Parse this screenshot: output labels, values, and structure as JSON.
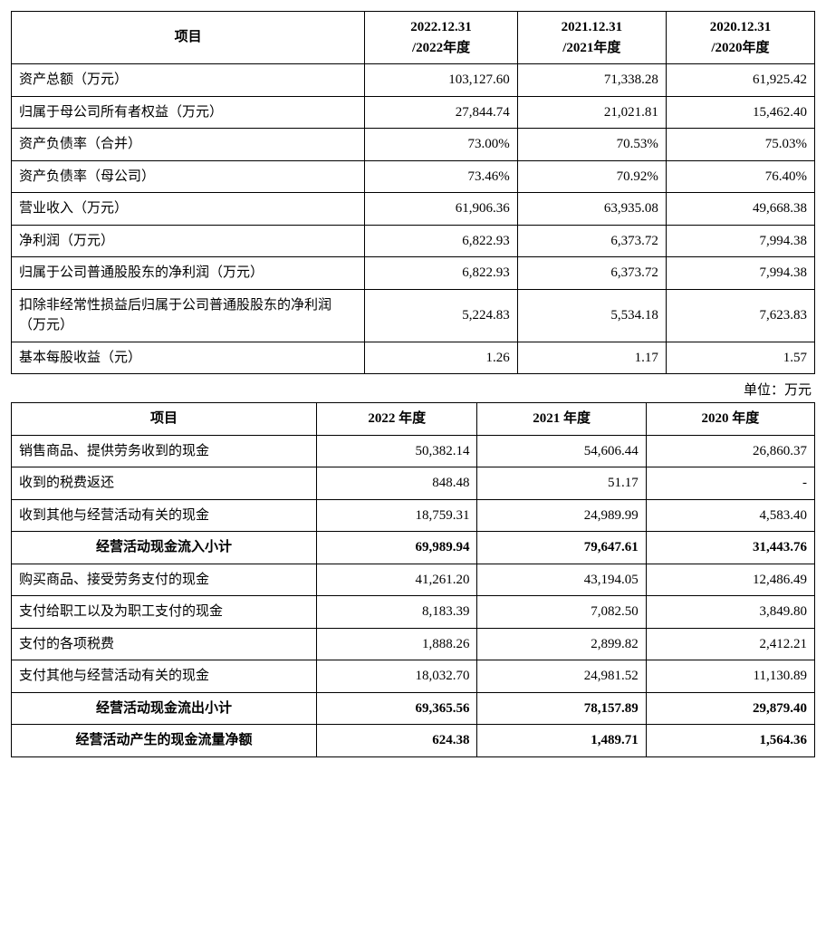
{
  "table1": {
    "header": {
      "item": "项目",
      "y2022": "2022.12.31\n/2022年度",
      "y2021": "2021.12.31\n/2021年度",
      "y2020": "2020.12.31\n/2020年度"
    },
    "rows": [
      {
        "label": "资产总额（万元）",
        "v": [
          "103,127.60",
          "71,338.28",
          "61,925.42"
        ]
      },
      {
        "label": "归属于母公司所有者权益（万元）",
        "v": [
          "27,844.74",
          "21,021.81",
          "15,462.40"
        ]
      },
      {
        "label": "资产负债率（合并）",
        "v": [
          "73.00%",
          "70.53%",
          "75.03%"
        ]
      },
      {
        "label": "资产负债率（母公司）",
        "v": [
          "73.46%",
          "70.92%",
          "76.40%"
        ]
      },
      {
        "label": "营业收入（万元）",
        "v": [
          "61,906.36",
          "63,935.08",
          "49,668.38"
        ]
      },
      {
        "label": "净利润（万元）",
        "v": [
          "6,822.93",
          "6,373.72",
          "7,994.38"
        ]
      },
      {
        "label": "归属于公司普通股股东的净利润（万元）",
        "v": [
          "6,822.93",
          "6,373.72",
          "7,994.38"
        ]
      },
      {
        "label": "扣除非经常性损益后归属于公司普通股股东的净利润（万元）",
        "v": [
          "5,224.83",
          "5,534.18",
          "7,623.83"
        ]
      },
      {
        "label": "基本每股收益（元）",
        "v": [
          "1.26",
          "1.17",
          "1.57"
        ]
      }
    ]
  },
  "unit_label": "单位：万元",
  "table2": {
    "header": {
      "item": "项目",
      "y2022": "2022 年度",
      "y2021": "2021 年度",
      "y2020": "2020 年度"
    },
    "rows": [
      {
        "label": "销售商品、提供劳务收到的现金",
        "v": [
          "50,382.14",
          "54,606.44",
          "26,860.37"
        ],
        "bold": false,
        "center": false
      },
      {
        "label": "收到的税费返还",
        "v": [
          "848.48",
          "51.17",
          "-"
        ],
        "bold": false,
        "center": false
      },
      {
        "label": "收到其他与经营活动有关的现金",
        "v": [
          "18,759.31",
          "24,989.99",
          "4,583.40"
        ],
        "bold": false,
        "center": false
      },
      {
        "label": "经营活动现金流入小计",
        "v": [
          "69,989.94",
          "79,647.61",
          "31,443.76"
        ],
        "bold": true,
        "center": true
      },
      {
        "label": "购买商品、接受劳务支付的现金",
        "v": [
          "41,261.20",
          "43,194.05",
          "12,486.49"
        ],
        "bold": false,
        "center": false
      },
      {
        "label": "支付给职工以及为职工支付的现金",
        "v": [
          "8,183.39",
          "7,082.50",
          "3,849.80"
        ],
        "bold": false,
        "center": false
      },
      {
        "label": "支付的各项税费",
        "v": [
          "1,888.26",
          "2,899.82",
          "2,412.21"
        ],
        "bold": false,
        "center": false
      },
      {
        "label": "支付其他与经营活动有关的现金",
        "v": [
          "18,032.70",
          "24,981.52",
          "11,130.89"
        ],
        "bold": false,
        "center": false
      },
      {
        "label": "经营活动现金流出小计",
        "v": [
          "69,365.56",
          "78,157.89",
          "29,879.40"
        ],
        "bold": true,
        "center": true
      },
      {
        "label": "经营活动产生的现金流量净额",
        "v": [
          "624.38",
          "1,489.71",
          "1,564.36"
        ],
        "bold": true,
        "center": true
      }
    ]
  },
  "style": {
    "border_color": "#000000",
    "text_color": "#000000",
    "background": "#ffffff",
    "font_family": "SimSun",
    "base_fontsize_pt": 11,
    "header_bold": true
  }
}
